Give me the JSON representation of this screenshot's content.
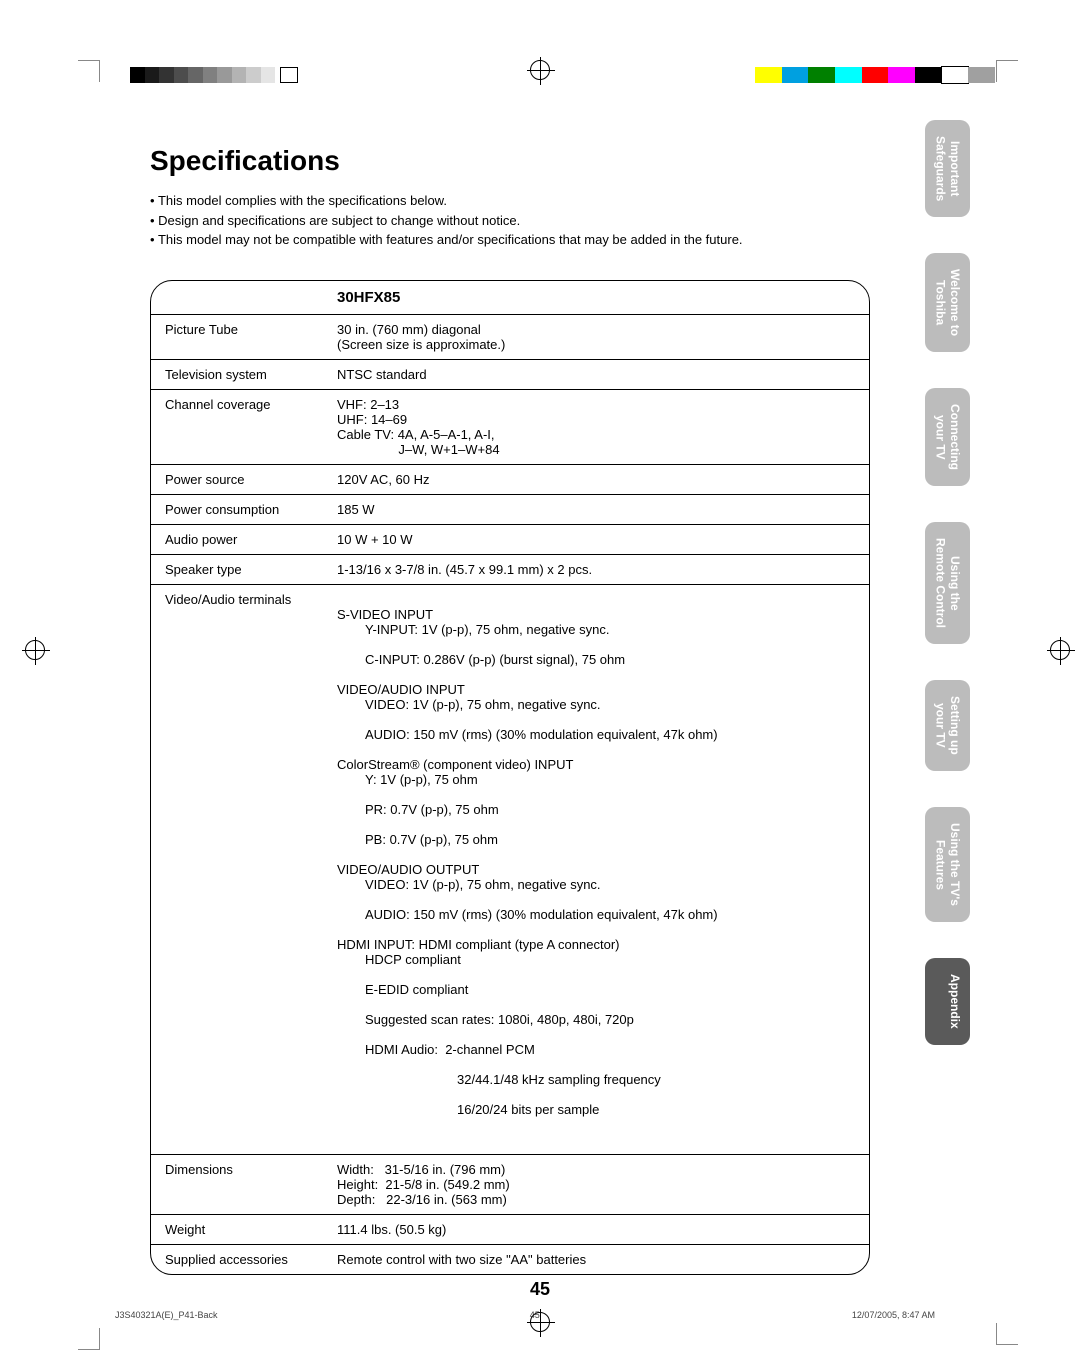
{
  "title": "Specifications",
  "bullets": [
    "This model complies with the specifications below.",
    "Design and specifications are subject to change without notice.",
    "This model may not be compatible with features and/or specifications that may be added in the future."
  ],
  "model": "30HFX85",
  "rows": {
    "picture_tube_label": "Picture Tube",
    "picture_tube_value": "30 in. (760 mm) diagonal\n(Screen size is approximate.)",
    "tv_system_label": "Television system",
    "tv_system_value": "NTSC standard",
    "channel_label": "Channel coverage",
    "channel_value": "VHF: 2–13\nUHF: 14–69\nCable TV: 4A, A-5–A-1, A-I,\n                 J–W, W+1–W+84",
    "power_src_label": "Power source",
    "power_src_value": "120V AC, 60 Hz",
    "power_cons_label": "Power consumption",
    "power_cons_value": "185 W",
    "audio_pwr_label": "Audio power",
    "audio_pwr_value": "10 W + 10 W",
    "speaker_label": "Speaker type",
    "speaker_value": "1-13/16 x 3-7/8 in. (45.7 x 99.1 mm) x 2 pcs.",
    "va_label": "Video/Audio terminals",
    "dim_label": "Dimensions",
    "dim_value": "Width:   31-5/16 in. (796 mm)\nHeight:  21-5/8 in. (549.2 mm)\nDepth:   22-3/16 in. (563 mm)",
    "weight_label": "Weight",
    "weight_value": "111.4 lbs. (50.5 kg)",
    "acc_label": "Supplied accessories",
    "acc_value": "Remote control with two size \"AA\" batteries"
  },
  "va_lines": {
    "l0": "S-VIDEO INPUT",
    "l1": "Y-INPUT: 1V (p-p), 75 ohm, negative sync.",
    "l2": "C-INPUT: 0.286V (p-p) (burst signal), 75 ohm",
    "l3": "VIDEO/AUDIO INPUT",
    "l4": "VIDEO: 1V (p-p), 75 ohm, negative sync.",
    "l5": "AUDIO: 150 mV (rms) (30% modulation equivalent, 47k ohm)",
    "l6": "ColorStream® (component video) INPUT",
    "l7": "Y: 1V (p-p), 75 ohm",
    "l8": "PR: 0.7V (p-p), 75 ohm",
    "l9": "PB: 0.7V (p-p), 75 ohm",
    "l10": "VIDEO/AUDIO OUTPUT",
    "l11": "VIDEO: 1V (p-p), 75 ohm, negative sync.",
    "l12": "AUDIO: 150 mV (rms) (30% modulation equivalent, 47k ohm)",
    "l13": "HDMI INPUT: HDMI compliant (type A connector)",
    "l14": "HDCP compliant",
    "l15": "E-EDID compliant",
    "l16": "Suggested scan rates: 1080i, 480p, 480i, 720p",
    "l17": "HDMI Audio:  2-channel PCM",
    "l18": "32/44.1/48 kHz sampling frequency",
    "l19": "16/20/24 bits per sample"
  },
  "tabs": [
    "Important\nSafeguards",
    "Welcome to\nToshiba",
    "Connecting\nyour TV",
    "Using the\nRemote Control",
    "Setting up\nyour TV",
    "Using the TV's\nFeatures",
    "Appendix"
  ],
  "page_number": "45",
  "footer_left": "J3S40321A(E)_P41-Back",
  "footer_mid": "45",
  "footer_right": "12/07/2005, 8:47 AM",
  "print_marks": {
    "grad_colors": [
      "#000000",
      "#1a1a1a",
      "#333333",
      "#4d4d4d",
      "#666666",
      "#808080",
      "#999999",
      "#b3b3b3",
      "#cccccc",
      "#e5e5e5"
    ],
    "color_bar": [
      "#ffff00",
      "#00a0e0",
      "#008000",
      "#00ffff",
      "#ff0000",
      "#ff00ff",
      "#000000",
      "#ffffff",
      "#a0a0a0"
    ]
  }
}
